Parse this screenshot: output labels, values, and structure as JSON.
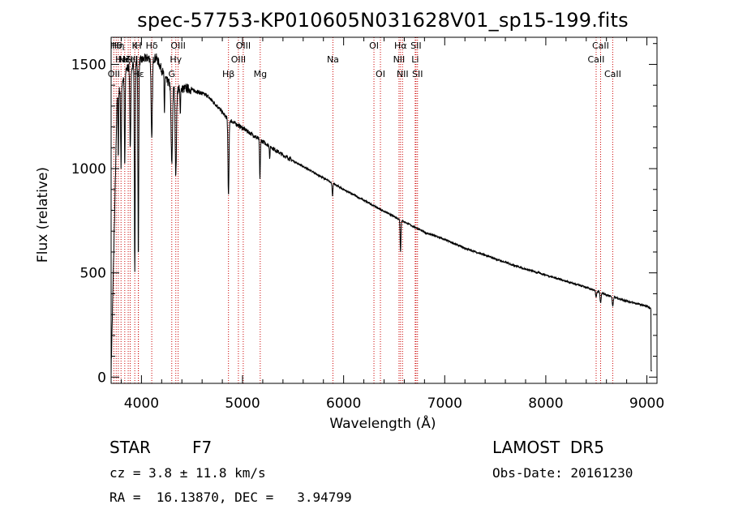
{
  "chart_data": {
    "type": "line",
    "title": "spec-57753-KP010605N031628V01_sp15-199.fits",
    "xlabel": "Wavelength (Å)",
    "ylabel": "Flux (relative)",
    "xlim": [
      3700,
      9100
    ],
    "ylim": [
      -30,
      1630
    ],
    "xticks": [
      4000,
      5000,
      6000,
      7000,
      8000,
      9000
    ],
    "xtick_labels": [
      "4000",
      "5000",
      "6000",
      "7000",
      "8000",
      "9000"
    ],
    "yticks": [
      0,
      500,
      1000,
      1500
    ],
    "ytick_labels": [
      "0",
      "500",
      "1000",
      "1500"
    ],
    "series_color": "#000000",
    "line_color": "#cc0000",
    "continuum": {
      "x": [
        3700,
        3760,
        3850,
        3950,
        4050,
        4150,
        4250,
        4350,
        4450,
        4550,
        4650,
        4750,
        4850,
        5000,
        5200,
        5400,
        5600,
        5800,
        6000,
        6200,
        6400,
        6600,
        6800,
        7000,
        7200,
        7400,
        7600,
        7800,
        8000,
        8200,
        8400,
        8600,
        8800,
        9000,
        9050
      ],
      "y": [
        20,
        1340,
        1480,
        1510,
        1530,
        1530,
        1420,
        1380,
        1385,
        1370,
        1350,
        1300,
        1240,
        1195,
        1130,
        1065,
        1010,
        955,
        900,
        848,
        795,
        745,
        695,
        660,
        618,
        585,
        550,
        518,
        490,
        460,
        430,
        395,
        365,
        340,
        325
      ]
    },
    "absorption": [
      {
        "x": 3934,
        "depth": 1000,
        "width": 4
      },
      {
        "x": 3969,
        "depth": 950,
        "width": 4
      },
      {
        "x": 3890,
        "depth": 400,
        "width": 5
      },
      {
        "x": 3835,
        "depth": 450,
        "width": 4
      },
      {
        "x": 3798,
        "depth": 380,
        "width": 4
      },
      {
        "x": 3771,
        "depth": 300,
        "width": 3
      },
      {
        "x": 4102,
        "depth": 400,
        "width": 6
      },
      {
        "x": 4227,
        "depth": 180,
        "width": 3
      },
      {
        "x": 4300,
        "depth": 380,
        "width": 7
      },
      {
        "x": 4340,
        "depth": 420,
        "width": 6
      },
      {
        "x": 4384,
        "depth": 120,
        "width": 3
      },
      {
        "x": 4861,
        "depth": 370,
        "width": 5
      },
      {
        "x": 5172,
        "depth": 190,
        "width": 4
      },
      {
        "x": 5269,
        "depth": 60,
        "width": 3
      },
      {
        "x": 5890,
        "depth": 60,
        "width": 4
      },
      {
        "x": 6563,
        "depth": 150,
        "width": 4
      },
      {
        "x": 8498,
        "depth": 30,
        "width": 5
      },
      {
        "x": 8542,
        "depth": 50,
        "width": 5
      },
      {
        "x": 8662,
        "depth": 45,
        "width": 5
      }
    ],
    "lines": [
      {
        "x": 3727,
        "label": "OII",
        "row": 3
      },
      {
        "x": 3750,
        "label": "Hθ",
        "row": 1
      },
      {
        "x": 3771,
        "label": "Hη",
        "row": 1
      },
      {
        "x": 3798,
        "label": "Hε",
        "row": 2
      },
      {
        "x": 3835,
        "label": "Hζ",
        "row": 2
      },
      {
        "x": 3869,
        "label": "NeIII",
        "row": 2
      },
      {
        "x": 3889,
        "label": "HeI",
        "row": 2
      },
      {
        "x": 3934,
        "label": "K",
        "row": 1
      },
      {
        "x": 3969,
        "label": "H",
        "row": 1
      },
      {
        "x": 3970,
        "label": "Hε",
        "row": 3
      },
      {
        "x": 4102,
        "label": "Hδ",
        "row": 1
      },
      {
        "x": 4300,
        "label": "G",
        "row": 3
      },
      {
        "x": 4340,
        "label": "Hγ",
        "row": 2
      },
      {
        "x": 4363,
        "label": "OIII",
        "row": 1
      },
      {
        "x": 4861,
        "label": "Hβ",
        "row": 3
      },
      {
        "x": 4959,
        "label": "OIII",
        "row": 2
      },
      {
        "x": 5007,
        "label": "OIII",
        "row": 1
      },
      {
        "x": 5175,
        "label": "Mg",
        "row": 3
      },
      {
        "x": 5894,
        "label": "Na",
        "row": 2
      },
      {
        "x": 6300,
        "label": "OI",
        "row": 1
      },
      {
        "x": 6364,
        "label": "OI",
        "row": 3
      },
      {
        "x": 6548,
        "label": "NII",
        "row": 2
      },
      {
        "x": 6563,
        "label": "Hα",
        "row": 1
      },
      {
        "x": 6583,
        "label": "NII",
        "row": 3
      },
      {
        "x": 6708,
        "label": "Li",
        "row": 2
      },
      {
        "x": 6716,
        "label": "SII",
        "row": 1
      },
      {
        "x": 6731,
        "label": "SII",
        "row": 3
      },
      {
        "x": 8498,
        "label": "CaII",
        "row": 2
      },
      {
        "x": 8542,
        "label": "CaII",
        "row": 1
      },
      {
        "x": 8662,
        "label": "CaII",
        "row": 3
      }
    ]
  },
  "footer": {
    "object_class": "STAR",
    "subclass": "F7",
    "survey": "LAMOST  DR5",
    "cz": "cz = 3.8 ± 11.8 km/s",
    "obs_date": "Obs-Date: 20161230",
    "radec": "RA =  16.13870, DEC =   3.94799"
  }
}
